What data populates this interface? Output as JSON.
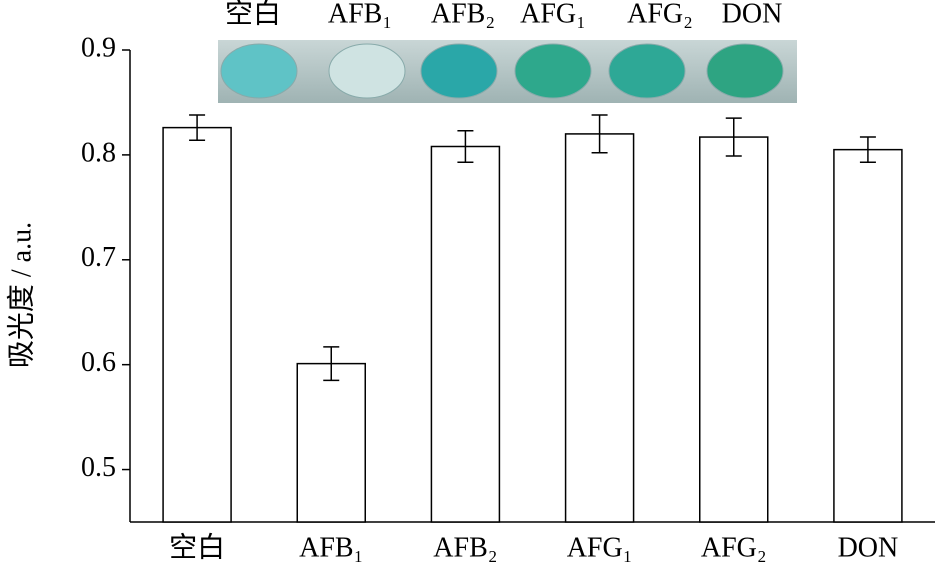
{
  "chart_data": {
    "type": "bar",
    "ylabel": "吸光度 / a.u.",
    "categories": [
      "空白",
      "AFB₁",
      "AFB₂",
      "AFG₁",
      "AFG₂",
      "DON"
    ],
    "values": [
      0.826,
      0.601,
      0.808,
      0.82,
      0.817,
      0.805
    ],
    "errors": [
      0.012,
      0.016,
      0.015,
      0.018,
      0.018,
      0.012
    ],
    "color": "#ffffff",
    "ylim": [
      0.45,
      0.9
    ],
    "yticks": [
      0.5,
      0.6,
      0.7,
      0.8,
      0.9
    ],
    "inset_labels": [
      "空白",
      "AFB₁",
      "AFB₂",
      "AFG₁",
      "AFG₂",
      "DON"
    ]
  }
}
